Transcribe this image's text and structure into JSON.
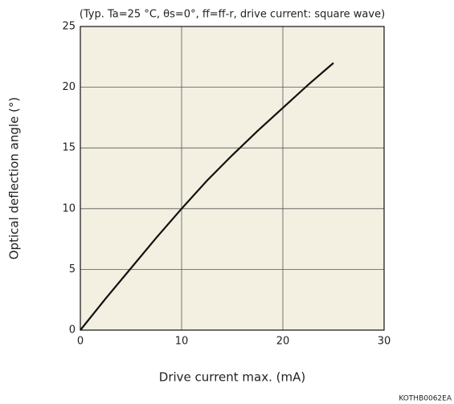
{
  "chart_data": {
    "type": "line",
    "title": "(Typ. Ta=25 °C, θs=0°, ff=ff-r, drive current: square wave)",
    "x_label": "Drive current max. (mA)",
    "y_label": "Optical deflection angle (°)",
    "footnote": "KOTHB0062EA",
    "x": [
      0,
      2.5,
      5,
      7.5,
      10,
      12.5,
      15,
      17.5,
      20,
      22.5,
      25
    ],
    "values": [
      0,
      2.6,
      5.1,
      7.6,
      10,
      12.3,
      14.4,
      16.4,
      18.3,
      20.2,
      22
    ],
    "color": "#111111",
    "xlim": [
      0,
      30
    ],
    "xticks": [
      0,
      10,
      20,
      30
    ],
    "ylim": [
      0,
      25
    ],
    "yticks": [
      0,
      5,
      10,
      15,
      20,
      25
    ],
    "grid": true
  }
}
